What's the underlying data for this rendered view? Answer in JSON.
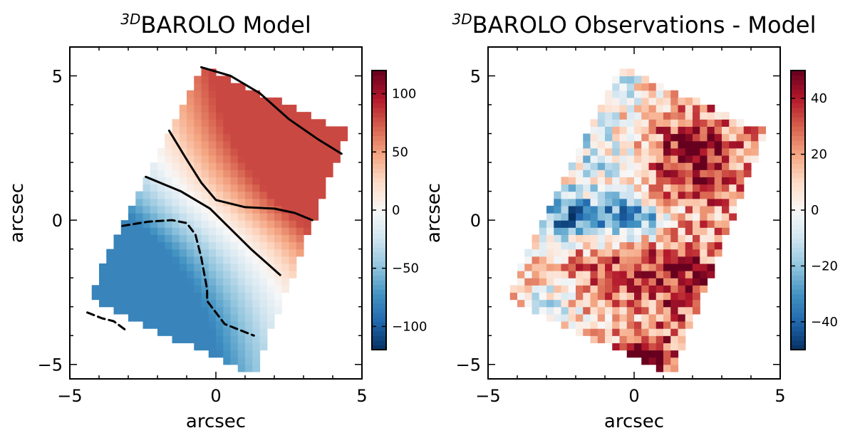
{
  "chart_data": [
    {
      "type": "heatmap",
      "title_superscript": "3D",
      "title": "BAROLO Model",
      "xlabel": "arcsec",
      "ylabel": "arcsec",
      "xlim": [
        -5,
        5
      ],
      "ylim": [
        -5.5,
        6
      ],
      "x_ticks": [
        -5,
        0,
        5
      ],
      "y_ticks": [
        -5,
        0,
        5
      ],
      "x_tick_labels": [
        "−5",
        "0",
        "5"
      ],
      "y_tick_labels": [
        "−5",
        "0",
        "5"
      ],
      "colormap": "RdBu_r",
      "colorbar": {
        "range": [
          -120,
          120
        ],
        "ticks": [
          -100,
          -50,
          0,
          50,
          100
        ],
        "tick_labels": [
          "−100",
          "−50",
          "0",
          "50",
          "100"
        ],
        "colors": [
          "#053061",
          "#2166ac",
          "#4393c3",
          "#92c5de",
          "#d1e5f0",
          "#f7f7f7",
          "#fddbc7",
          "#f4a582",
          "#d6604d",
          "#b2182b",
          "#67001f"
        ]
      },
      "field_model": {
        "field_corners": [
          [
            -0.5,
            5.3
          ],
          [
            4.5,
            3.1
          ],
          [
            1.3,
            -5.4
          ],
          [
            -4.4,
            -2.7
          ]
        ],
        "vsys_gradient": 52,
        "max_velocity": 80,
        "contour_ticks": [
          -50,
          0,
          50
        ]
      },
      "contours": [
        {
          "level": 50,
          "style": "solid",
          "points": [
            [
              -0.5,
              5.3
            ],
            [
              0.5,
              5.0
            ],
            [
              1.5,
              4.4
            ],
            [
              2.5,
              3.5
            ],
            [
              3.5,
              2.8
            ],
            [
              4.3,
              2.3
            ]
          ]
        },
        {
          "level": 0,
          "style": "solid",
          "points": [
            [
              -1.6,
              3.1
            ],
            [
              -1.0,
              2.1
            ],
            [
              -0.5,
              1.3
            ],
            [
              0.0,
              0.7
            ],
            [
              1.0,
              0.45
            ],
            [
              2.0,
              0.4
            ],
            [
              2.7,
              0.25
            ],
            [
              3.3,
              0.0
            ]
          ]
        },
        {
          "level": 0,
          "style": "solid",
          "points": [
            [
              -2.4,
              1.5
            ],
            [
              -1.2,
              1.0
            ],
            [
              -0.2,
              0.4
            ],
            [
              0.5,
              -0.3
            ],
            [
              1.2,
              -1.0
            ],
            [
              2.2,
              -1.9
            ]
          ]
        },
        {
          "level": -50,
          "style": "dashed",
          "points": [
            [
              -3.2,
              -0.2
            ],
            [
              -2.3,
              -0.05
            ],
            [
              -1.5,
              0.0
            ],
            [
              -1.0,
              -0.1
            ],
            [
              -0.7,
              -0.5
            ],
            [
              -0.5,
              -1.3
            ],
            [
              -0.3,
              -2.4
            ],
            [
              -0.3,
              -2.8
            ],
            [
              0.3,
              -3.6
            ],
            [
              1.3,
              -4.0
            ]
          ]
        },
        {
          "level": -50,
          "style": "dashed",
          "points": [
            [
              -4.4,
              -3.2
            ],
            [
              -3.9,
              -3.4
            ],
            [
              -3.5,
              -3.5
            ],
            [
              -3.1,
              -3.8
            ]
          ]
        }
      ]
    },
    {
      "type": "heatmap",
      "title_superscript": "3D",
      "title": "BAROLO Observations - Model",
      "xlabel": "arcsec",
      "ylabel": "arcsec",
      "xlim": [
        -5,
        5
      ],
      "ylim": [
        -5.5,
        6
      ],
      "x_ticks": [
        -5,
        0,
        5
      ],
      "y_ticks": [
        -5,
        0,
        5
      ],
      "x_tick_labels": [
        "−5",
        "0",
        "5"
      ],
      "y_tick_labels": [
        "−5",
        "0",
        "5"
      ],
      "colormap": "RdBu_r",
      "colorbar": {
        "range": [
          -50,
          50
        ],
        "ticks": [
          -40,
          -20,
          0,
          20,
          40
        ],
        "tick_labels": [
          "−40",
          "−20",
          "0",
          "20",
          "40"
        ],
        "colors": [
          "#053061",
          "#2166ac",
          "#4393c3",
          "#92c5de",
          "#d1e5f0",
          "#f7f7f7",
          "#fddbc7",
          "#f4a582",
          "#d6604d",
          "#b2182b",
          "#67001f"
        ]
      },
      "field_model": {
        "field_corners": [
          [
            -0.5,
            5.3
          ],
          [
            4.5,
            3.1
          ],
          [
            1.3,
            -5.4
          ],
          [
            -4.4,
            -2.7
          ]
        ],
        "background_residual": 28,
        "noise_amplitude": 22,
        "negative_blobs": [
          {
            "x": -2.3,
            "y": 0.1,
            "value": -45,
            "sx": 0.9,
            "sy": 0.55
          },
          {
            "x": 0.0,
            "y": 0.05,
            "value": -45,
            "sx": 0.9,
            "sy": 0.5
          },
          {
            "x": -1.4,
            "y": 2.3,
            "value": -18,
            "sx": 1.0,
            "sy": 1.0
          },
          {
            "x": -0.7,
            "y": 4.6,
            "value": -25,
            "sx": 0.6,
            "sy": 0.5
          },
          {
            "x": -2.8,
            "y": -2.8,
            "value": -14,
            "sx": 0.6,
            "sy": 0.6
          }
        ],
        "positive_blobs": [
          {
            "x": 0.3,
            "y": -4.7,
            "value": 48,
            "sx": 0.7,
            "sy": 0.5
          },
          {
            "x": 2.1,
            "y": 2.2,
            "value": 35,
            "sx": 1.3,
            "sy": 1.3
          },
          {
            "x": 1.8,
            "y": -2.2,
            "value": 30,
            "sx": 1.2,
            "sy": 1.3
          },
          {
            "x": -1.0,
            "y": -1.8,
            "value": 22,
            "sx": 1.2,
            "sy": 0.8
          }
        ]
      }
    }
  ]
}
